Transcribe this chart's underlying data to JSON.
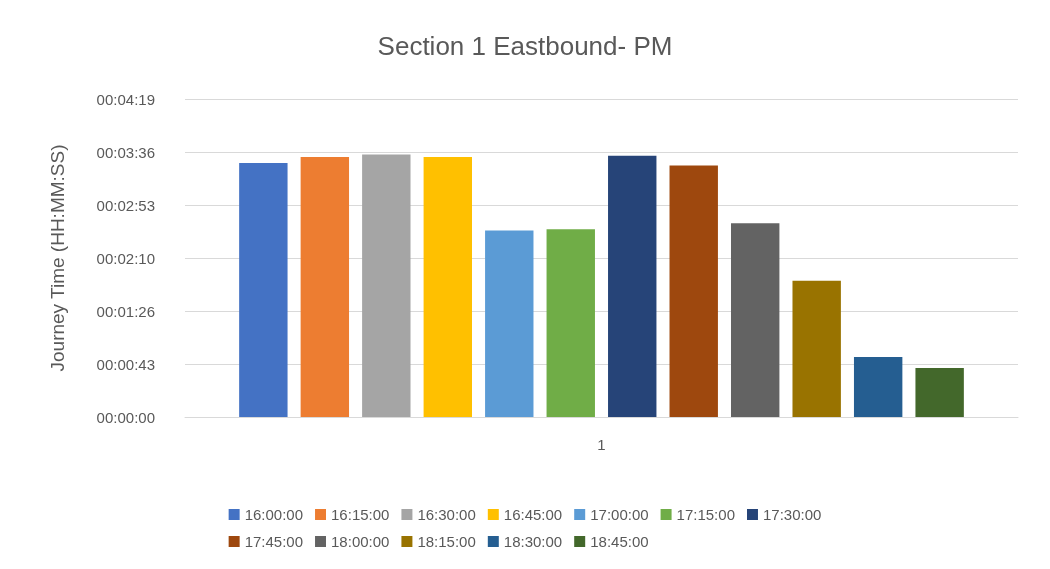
{
  "chart_data": {
    "type": "bar",
    "title": "Section 1 Eastbound- PM",
    "ylabel": "Journey Time (HH:MM:SS)",
    "categories": [
      "1"
    ],
    "series": [
      {
        "name": "16:00:00",
        "color": "#4472c4",
        "values": [
          207
        ]
      },
      {
        "name": "16:15:00",
        "color": "#ed7d31",
        "values": [
          212
        ]
      },
      {
        "name": "16:30:00",
        "color": "#a5a5a5",
        "values": [
          214
        ]
      },
      {
        "name": "16:45:00",
        "color": "#ffc000",
        "values": [
          212
        ]
      },
      {
        "name": "17:00:00",
        "color": "#5b9bd5",
        "values": [
          152
        ]
      },
      {
        "name": "17:15:00",
        "color": "#70ad47",
        "values": [
          153
        ]
      },
      {
        "name": "17:30:00",
        "color": "#264478",
        "values": [
          213
        ]
      },
      {
        "name": "17:45:00",
        "color": "#9e480e",
        "values": [
          205
        ]
      },
      {
        "name": "18:00:00",
        "color": "#636363",
        "values": [
          158
        ]
      },
      {
        "name": "18:15:00",
        "color": "#997300",
        "values": [
          111
        ]
      },
      {
        "name": "18:30:00",
        "color": "#255e91",
        "values": [
          49
        ]
      },
      {
        "name": "18:45:00",
        "color": "#43682b",
        "values": [
          40
        ]
      }
    ],
    "ylim": [
      0,
      259.2
    ],
    "yticks": [
      {
        "value": 0,
        "label": "00:00:00"
      },
      {
        "value": 43.2,
        "label": "00:00:43"
      },
      {
        "value": 86.4,
        "label": "00:01:26"
      },
      {
        "value": 129.6,
        "label": "00:02:10"
      },
      {
        "value": 172.8,
        "label": "00:02:53"
      },
      {
        "value": 216,
        "label": "00:03:36"
      },
      {
        "value": 259.2,
        "label": "00:04:19"
      }
    ],
    "grid": "y",
    "legend": "bottom"
  }
}
